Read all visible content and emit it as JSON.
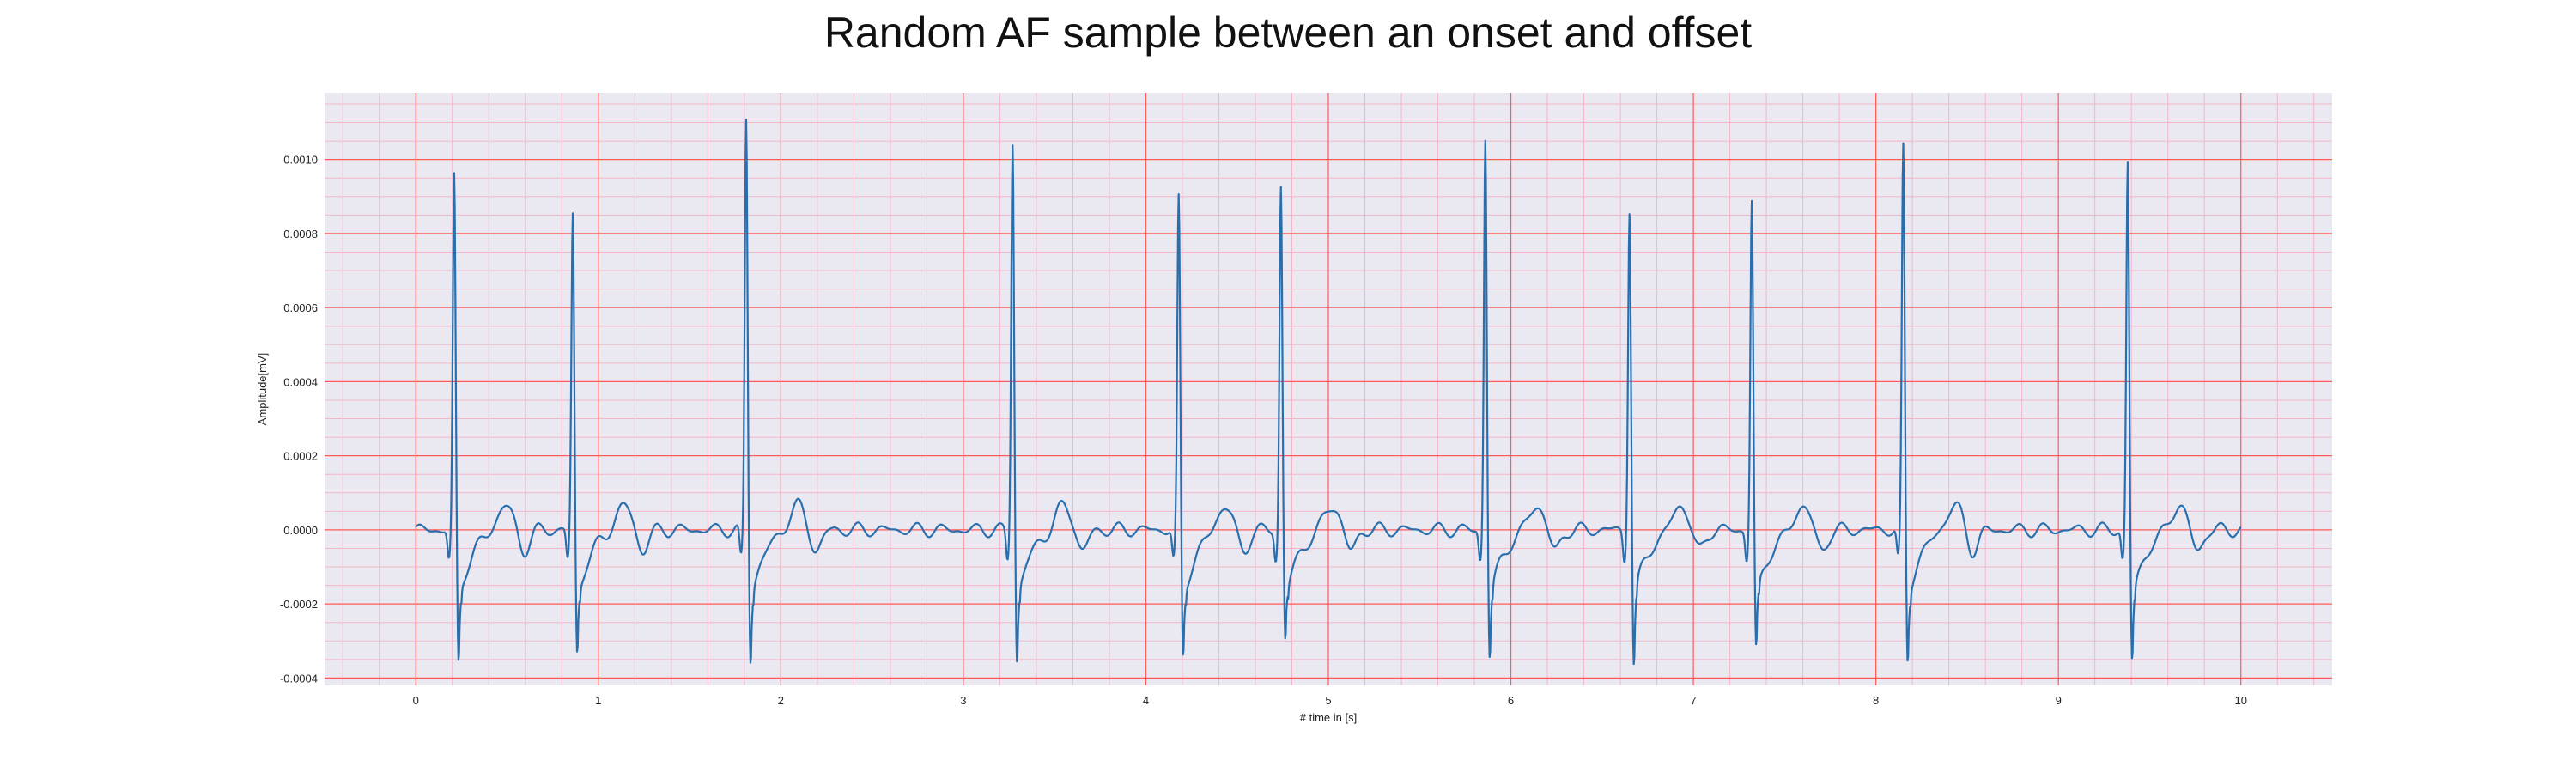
{
  "chart_data": {
    "type": "line",
    "title": "Random AF sample between an onset and offset",
    "xlabel": "# time in [s]",
    "ylabel": "Amplitude[mV]",
    "xlim": [
      -0.5,
      10.5
    ],
    "ylim": [
      -0.00042,
      0.00118
    ],
    "x_ticks": [
      0,
      1,
      2,
      3,
      4,
      5,
      6,
      7,
      8,
      9,
      10
    ],
    "x_tick_labels": [
      "0",
      "1",
      "2",
      "3",
      "4",
      "5",
      "6",
      "7",
      "8",
      "9",
      "10"
    ],
    "y_ticks": [
      -0.0004,
      -0.0002,
      0.0,
      0.0002,
      0.0004,
      0.0006,
      0.0008,
      0.001
    ],
    "y_tick_labels": [
      "-0.0004",
      "-0.0002",
      "0.0000",
      "0.0002",
      "0.0004",
      "0.0006",
      "0.0008",
      "0.0010"
    ],
    "grid": true,
    "minor_grid": true,
    "background_color": "#eae9f2",
    "major_grid_color": "#ff5a5a",
    "minor_grid_color": "#f3b6c8",
    "series": [
      {
        "color": "#2a6fad",
        "x_start": 0,
        "x_end": 10,
        "beats": [
          {
            "t": 0.21,
            "r": 0.00095,
            "s": -0.00037
          },
          {
            "t": 0.86,
            "r": 0.00085,
            "s": -0.00034
          },
          {
            "t": 1.81,
            "r": 0.00111,
            "s": -0.00036
          },
          {
            "t": 3.27,
            "r": 0.00105,
            "s": -0.00036
          },
          {
            "t": 4.18,
            "r": 0.00089,
            "s": -0.00035
          },
          {
            "t": 4.74,
            "r": 0.00093,
            "s": -0.0003
          },
          {
            "t": 5.86,
            "r": 0.00106,
            "s": -0.00035
          },
          {
            "t": 6.65,
            "r": 0.00087,
            "s": -0.00037
          },
          {
            "t": 7.32,
            "r": 0.00089,
            "s": -0.00033
          },
          {
            "t": 8.15,
            "r": 0.00103,
            "s": -0.00036
          },
          {
            "t": 9.38,
            "r": 0.00099,
            "s": -0.00036
          }
        ]
      }
    ]
  }
}
